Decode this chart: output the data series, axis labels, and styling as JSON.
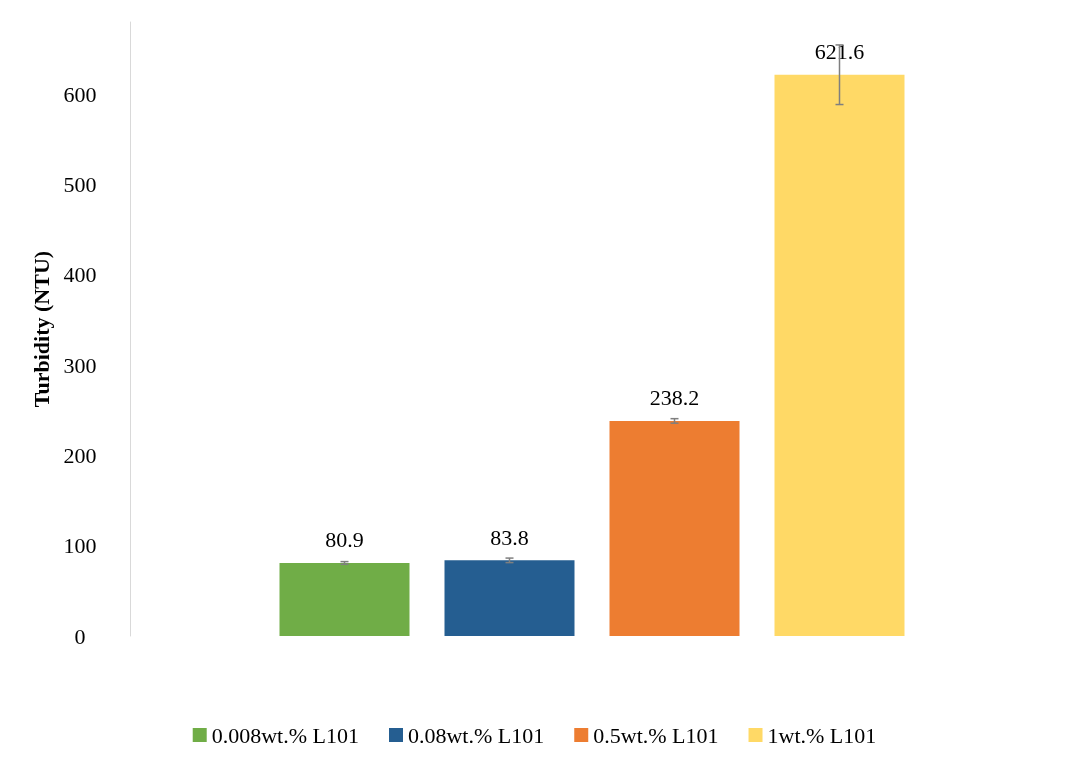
{
  "chart_data": {
    "type": "bar",
    "ylabel": "Turbidity (NTU)",
    "categories": [
      null
    ],
    "series": [
      {
        "name": "0.008wt.% L101",
        "color": "#70ad47",
        "values": [
          80.9
        ],
        "errors": [
          1.5
        ]
      },
      {
        "name": "0.08wt.% L101",
        "color": "#255e91",
        "values": [
          83.8
        ],
        "errors": [
          2.5
        ]
      },
      {
        "name": "0.5wt.% L101",
        "color": "#ed7d31",
        "values": [
          238.2
        ],
        "errors": [
          2.5
        ]
      },
      {
        "name": "1wt.% L101",
        "color": "#ffd966",
        "values": [
          621.6
        ],
        "errors": [
          33
        ]
      }
    ],
    "ylim": [
      0,
      680
    ],
    "yticks": [
      0,
      100,
      200,
      300,
      400,
      500,
      600
    ],
    "grid": false,
    "legend": "bottom",
    "data_labels": true
  }
}
